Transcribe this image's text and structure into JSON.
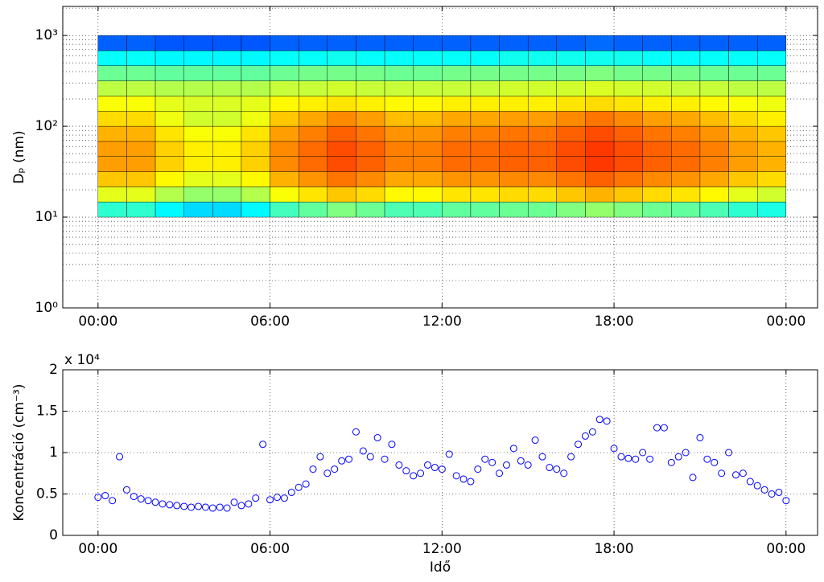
{
  "chart_data": [
    {
      "type": "heatmap",
      "ylabel": "Dₚ (nm)",
      "yscale": "log",
      "grid": true,
      "colormap": "jet",
      "xlim": [
        -1.23,
        25.1
      ],
      "xticks": [
        {
          "value": 0,
          "label": "00:00"
        },
        {
          "value": 6,
          "label": "06:00"
        },
        {
          "value": 12,
          "label": "12:00"
        },
        {
          "value": 18,
          "label": "18:00"
        },
        {
          "value": 24,
          "label": "00:00"
        }
      ],
      "ylim": [
        1,
        2089
      ],
      "yticks": [
        {
          "value": 1,
          "label": "10⁰"
        },
        {
          "value": 10,
          "label": "10¹"
        },
        {
          "value": 100,
          "label": "10²"
        },
        {
          "value": 1000,
          "label": "10³"
        }
      ],
      "yminorticks": [
        2,
        3,
        4,
        5,
        6,
        7,
        8,
        9,
        20,
        30,
        40,
        50,
        60,
        70,
        80,
        90,
        200,
        300,
        400,
        500,
        600,
        700,
        800,
        900,
        2000
      ],
      "x_edges": [
        0,
        1,
        2,
        3,
        4,
        5,
        6,
        7,
        8,
        9,
        10,
        11,
        12,
        13,
        14,
        15,
        16,
        17,
        18,
        19,
        20,
        21,
        22,
        23,
        24
      ],
      "y_edges": [
        10,
        14.7,
        21.5,
        31.6,
        46.4,
        68.1,
        100,
        147,
        215,
        316,
        464,
        681,
        1000
      ],
      "z": [
        [
          0.42,
          0.42,
          0.37,
          0.34,
          0.34,
          0.37,
          0.44,
          0.47,
          0.5,
          0.48,
          0.45,
          0.45,
          0.47,
          0.47,
          0.48,
          0.48,
          0.5,
          0.52,
          0.5,
          0.48,
          0.47,
          0.45,
          0.42,
          0.4
        ],
        [
          0.6,
          0.6,
          0.55,
          0.52,
          0.52,
          0.55,
          0.62,
          0.65,
          0.68,
          0.66,
          0.63,
          0.63,
          0.65,
          0.65,
          0.66,
          0.66,
          0.68,
          0.7,
          0.68,
          0.66,
          0.65,
          0.63,
          0.6,
          0.58
        ],
        [
          0.68,
          0.68,
          0.63,
          0.6,
          0.6,
          0.63,
          0.7,
          0.73,
          0.76,
          0.74,
          0.71,
          0.71,
          0.73,
          0.73,
          0.74,
          0.74,
          0.76,
          0.78,
          0.76,
          0.74,
          0.73,
          0.71,
          0.68,
          0.66
        ],
        [
          0.72,
          0.72,
          0.67,
          0.64,
          0.64,
          0.67,
          0.74,
          0.77,
          0.8,
          0.78,
          0.75,
          0.75,
          0.77,
          0.77,
          0.78,
          0.78,
          0.8,
          0.82,
          0.8,
          0.78,
          0.77,
          0.75,
          0.72,
          0.7
        ],
        [
          0.72,
          0.72,
          0.67,
          0.64,
          0.64,
          0.67,
          0.74,
          0.77,
          0.8,
          0.78,
          0.75,
          0.75,
          0.77,
          0.77,
          0.78,
          0.78,
          0.8,
          0.82,
          0.8,
          0.78,
          0.77,
          0.75,
          0.72,
          0.7
        ],
        [
          0.7,
          0.7,
          0.65,
          0.62,
          0.62,
          0.65,
          0.72,
          0.75,
          0.78,
          0.76,
          0.73,
          0.73,
          0.75,
          0.75,
          0.76,
          0.76,
          0.78,
          0.8,
          0.78,
          0.76,
          0.75,
          0.73,
          0.7,
          0.68
        ],
        [
          0.66,
          0.66,
          0.61,
          0.58,
          0.58,
          0.61,
          0.68,
          0.71,
          0.74,
          0.72,
          0.69,
          0.69,
          0.71,
          0.71,
          0.72,
          0.72,
          0.74,
          0.76,
          0.74,
          0.72,
          0.71,
          0.69,
          0.66,
          0.64
        ],
        [
          0.62,
          0.62,
          0.6,
          0.59,
          0.59,
          0.6,
          0.63,
          0.64,
          0.65,
          0.64,
          0.63,
          0.63,
          0.64,
          0.64,
          0.64,
          0.64,
          0.65,
          0.66,
          0.65,
          0.64,
          0.64,
          0.63,
          0.62,
          0.61
        ],
        [
          0.56,
          0.56,
          0.55,
          0.55,
          0.55,
          0.55,
          0.57,
          0.57,
          0.58,
          0.57,
          0.57,
          0.57,
          0.57,
          0.57,
          0.58,
          0.58,
          0.58,
          0.59,
          0.58,
          0.58,
          0.57,
          0.57,
          0.56,
          0.56
        ],
        [
          0.48,
          0.48,
          0.47,
          0.47,
          0.47,
          0.47,
          0.48,
          0.49,
          0.49,
          0.49,
          0.48,
          0.48,
          0.49,
          0.49,
          0.49,
          0.49,
          0.49,
          0.5,
          0.49,
          0.49,
          0.49,
          0.48,
          0.48,
          0.48
        ],
        [
          0.38,
          0.38,
          0.37,
          0.37,
          0.37,
          0.37,
          0.38,
          0.38,
          0.39,
          0.38,
          0.38,
          0.38,
          0.38,
          0.38,
          0.39,
          0.39,
          0.39,
          0.39,
          0.39,
          0.38,
          0.38,
          0.38,
          0.38,
          0.38
        ],
        [
          0.22,
          0.22,
          0.21,
          0.21,
          0.21,
          0.21,
          0.22,
          0.22,
          0.22,
          0.22,
          0.22,
          0.22,
          0.22,
          0.22,
          0.22,
          0.22,
          0.22,
          0.23,
          0.22,
          0.22,
          0.22,
          0.22,
          0.22,
          0.22
        ]
      ]
    },
    {
      "type": "scatter",
      "ylabel": "Koncentráció (cm⁻³)",
      "xlabel": "Idő",
      "annotation": "x 10⁴",
      "color": "#0000ff",
      "grid": true,
      "xlim": [
        -1.23,
        25.1
      ],
      "xticks": [
        {
          "value": 0,
          "label": "00:00"
        },
        {
          "value": 6,
          "label": "06:00"
        },
        {
          "value": 12,
          "label": "12:00"
        },
        {
          "value": 18,
          "label": "18:00"
        },
        {
          "value": 24,
          "label": "00:00"
        }
      ],
      "ylim": [
        0,
        2
      ],
      "yticks": [
        0,
        0.5,
        1,
        1.5,
        2
      ],
      "x": [
        0,
        0.25,
        0.5,
        0.75,
        1,
        1.25,
        1.5,
        1.75,
        2,
        2.25,
        2.5,
        2.75,
        3,
        3.25,
        3.5,
        3.75,
        4,
        4.25,
        4.5,
        4.75,
        5,
        5.25,
        5.5,
        5.75,
        6,
        6.25,
        6.5,
        6.75,
        7,
        7.25,
        7.5,
        7.75,
        8,
        8.25,
        8.5,
        8.75,
        9,
        9.25,
        9.5,
        9.75,
        10,
        10.25,
        10.5,
        10.75,
        11,
        11.25,
        11.5,
        11.75,
        12,
        12.25,
        12.5,
        12.75,
        13,
        13.25,
        13.5,
        13.75,
        14,
        14.25,
        14.5,
        14.75,
        15,
        15.25,
        15.5,
        15.75,
        16,
        16.25,
        16.5,
        16.75,
        17,
        17.25,
        17.5,
        17.75,
        18,
        18.25,
        18.5,
        18.75,
        19,
        19.25,
        19.5,
        19.75,
        20,
        20.25,
        20.5,
        20.75,
        21,
        21.25,
        21.5,
        21.75,
        22,
        22.25,
        22.5,
        22.75,
        23,
        23.25,
        23.5,
        23.75,
        24
      ],
      "values": [
        0.46,
        0.48,
        0.42,
        0.95,
        0.55,
        0.47,
        0.44,
        0.42,
        0.4,
        0.38,
        0.37,
        0.36,
        0.35,
        0.34,
        0.35,
        0.34,
        0.33,
        0.34,
        0.33,
        0.4,
        0.36,
        0.38,
        0.45,
        1.1,
        0.43,
        0.46,
        0.45,
        0.52,
        0.58,
        0.62,
        0.8,
        0.95,
        0.75,
        0.8,
        0.9,
        0.92,
        1.25,
        1.02,
        0.95,
        1.18,
        0.92,
        1.1,
        0.85,
        0.78,
        0.72,
        0.75,
        0.85,
        0.82,
        0.8,
        0.98,
        0.72,
        0.68,
        0.65,
        0.8,
        0.92,
        0.88,
        0.75,
        0.85,
        1.05,
        0.9,
        0.85,
        1.15,
        0.95,
        0.82,
        0.8,
        0.75,
        0.95,
        1.1,
        1.2,
        1.25,
        1.4,
        1.38,
        1.05,
        0.95,
        0.93,
        0.92,
        1,
        0.92,
        1.3,
        1.3,
        0.88,
        0.95,
        1,
        0.7,
        1.18,
        0.92,
        0.88,
        0.75,
        1,
        0.73,
        0.75,
        0.65,
        0.6,
        0.55,
        0.5,
        0.52,
        0.42
      ]
    }
  ]
}
